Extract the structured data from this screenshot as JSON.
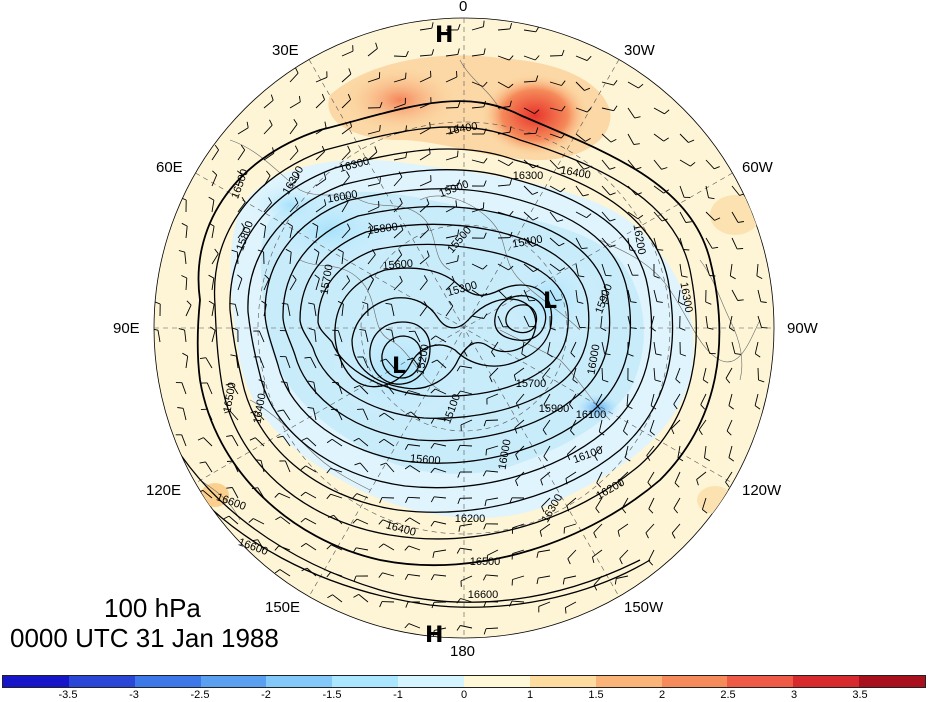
{
  "figure": {
    "level_label": "100 hPa",
    "time_label": "0000 UTC 31 Jan 1988"
  },
  "longitude_labels": {
    "top": "0",
    "bottom": "180",
    "lon_30e": "30E",
    "lon_30w": "30W",
    "lon_60e": "60E",
    "lon_60w": "60W",
    "lon_90e": "90E",
    "lon_90w": "90W",
    "lon_120e": "120E",
    "lon_120w": "120W",
    "lon_150e": "150E",
    "lon_150w": "150W"
  },
  "pressure_centers": [
    {
      "type": "H",
      "label": "H"
    },
    {
      "type": "L",
      "label": "L"
    },
    {
      "type": "L",
      "label": "L"
    },
    {
      "type": "H",
      "label": "H"
    }
  ],
  "contour_labels": [
    "16400",
    "16300",
    "16300",
    "16400",
    "16500",
    "16300",
    "16000",
    "15900",
    "15800",
    "15600",
    "15500",
    "15400",
    "15700",
    "15300",
    "15200",
    "15100",
    "15700",
    "15900",
    "16100",
    "16200",
    "16300",
    "16000",
    "15600",
    "16200",
    "16400",
    "16500",
    "16600",
    "16600",
    "16600",
    "16500",
    "16400",
    "16300",
    "16200",
    "16100",
    "16000",
    "15900",
    "15800"
  ],
  "colorbar": {
    "colors": [
      "#1616c8",
      "#2a46d6",
      "#3c78e8",
      "#5aa0f0",
      "#82c8f8",
      "#aae6ff",
      "#d4f4ff",
      "#fff8d6",
      "#fddca0",
      "#fab478",
      "#f58a5a",
      "#ee5a46",
      "#d62a2e",
      "#a8101e"
    ],
    "tick_labels": [
      "-3.5",
      "-3",
      "-2.5",
      "-2",
      "-1.5",
      "-1",
      "0",
      "1",
      "1.5",
      "2",
      "2.5",
      "3",
      "3.5"
    ]
  }
}
